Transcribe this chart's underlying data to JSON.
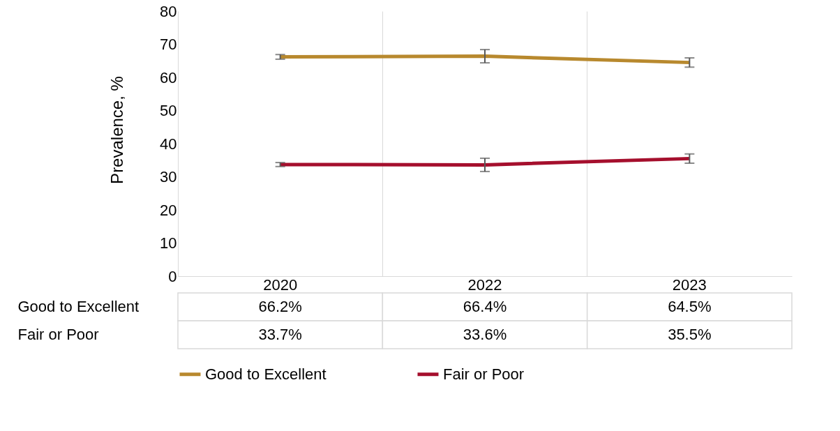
{
  "chart_data": {
    "type": "line",
    "ylabel": "Prevalence, %",
    "categories": [
      "2020",
      "2022",
      "2023"
    ],
    "series": [
      {
        "name": "Good to Excellent",
        "color": "#b8892e",
        "values": [
          66.2,
          66.4,
          64.5
        ],
        "errors": [
          0.7,
          2.0,
          1.4
        ],
        "value_labels": [
          "66.2%",
          "66.4%",
          "64.5%"
        ]
      },
      {
        "name": "Fair or Poor",
        "color": "#a50f2d",
        "values": [
          33.7,
          33.6,
          35.5
        ],
        "errors": [
          0.6,
          2.0,
          1.4
        ],
        "value_labels": [
          "33.7%",
          "33.6%",
          "35.5%"
        ]
      }
    ],
    "ylim": [
      0,
      80
    ],
    "yticks": [
      0,
      10,
      20,
      30,
      40,
      50,
      60,
      70,
      80
    ],
    "legend": "bottom"
  }
}
